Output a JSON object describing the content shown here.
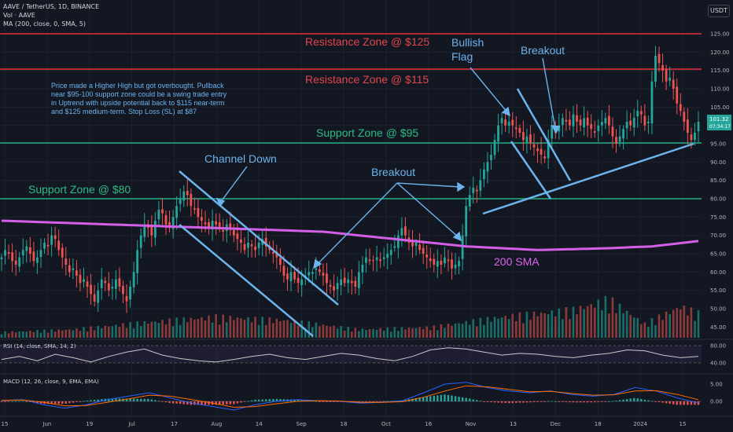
{
  "header": {
    "symbol_line": "AAVE / TetherUS, 1D, BINANCE",
    "volume_line": "Vol · AAVE",
    "ma_line": "MA (200, close, 0, SMA, 5)",
    "currency": "USDT"
  },
  "annotations": {
    "resistance_125": "Resistance Zone @ $125",
    "resistance_115": "Resistance Zone @ $115",
    "support_95": "Support Zone @ $95",
    "support_80": "Support Zone @ $80",
    "channel_down": "Channel Down",
    "breakout_mid": "Breakout",
    "breakout_top": "Breakout",
    "bullish_flag_1": "Bullish",
    "bullish_flag_2": "Flag",
    "sma_label": "200 SMA",
    "note": [
      "Price made a Higher High but got overbought. Pullback",
      "near $95-100 support zone could be a swing trade entry",
      "in Uptrend with upside potential back to $115 near-term",
      "and $125 medium-term. Stop Loss (SL) at $87"
    ]
  },
  "price_tag": {
    "value": "101.32",
    "time": "07:34:17"
  },
  "rsi_label": "RSI (14, close, SMA, 14, 2)",
  "macd_label": "MACD (12, 26, close, 9, EMA, EMA)",
  "colors": {
    "up": "#26a69a",
    "down": "#ef5350",
    "sma": "#e040fb",
    "resistance": "#f23645",
    "support": "#2ebd85",
    "trendline": "#64b5f6"
  },
  "chart_data": [
    {
      "type": "candlestick",
      "title": "AAVE / TetherUS, 1D, BINANCE",
      "ylim": [
        40,
        130
      ],
      "y_ticks": [
        45,
        50,
        55,
        60,
        65,
        70,
        75,
        80,
        85,
        90,
        95,
        100,
        105,
        110,
        115,
        120,
        125
      ],
      "x_tick_labels": [
        "15",
        "Jun",
        "19",
        "Jul",
        "17",
        "Aug",
        "14",
        "Sep",
        "18",
        "Oct",
        "16",
        "Nov",
        "13",
        "Dec",
        "18",
        "2024",
        "15"
      ],
      "horizontal_levels": [
        {
          "label": "Resistance Zone @ $125",
          "value": 125
        },
        {
          "label": "Resistance Zone @ $115",
          "value": 115
        },
        {
          "label": "Support Zone @ $95",
          "value": 95
        },
        {
          "label": "Support Zone @ $80",
          "value": 80
        }
      ],
      "close_series": [
        64,
        66,
        65,
        63,
        62,
        64,
        66,
        67,
        65,
        63,
        64,
        66,
        68,
        67,
        70,
        69,
        66,
        64,
        62,
        60,
        61,
        59,
        57,
        58,
        56,
        54,
        52,
        55,
        58,
        57,
        55,
        56,
        58,
        56,
        54,
        52,
        56,
        60,
        66,
        70,
        73,
        72,
        70,
        74,
        77,
        76,
        73,
        72,
        75,
        78,
        80,
        82,
        81,
        78,
        77,
        75,
        74,
        73,
        72,
        74,
        73,
        72,
        71,
        73,
        72,
        70,
        69,
        68,
        66,
        68,
        67,
        66,
        68,
        69,
        67,
        66,
        65,
        64,
        62,
        59,
        58,
        60,
        58,
        57,
        58,
        59,
        60,
        60,
        61,
        60,
        59,
        57,
        56,
        55,
        57,
        58,
        57,
        58,
        57,
        56,
        60,
        62,
        64,
        63,
        63,
        64,
        63,
        64,
        65,
        66,
        67,
        70,
        72,
        70,
        68,
        67,
        68,
        66,
        65,
        64,
        63,
        62,
        63,
        62,
        64,
        63,
        61,
        62,
        63,
        70,
        78,
        81,
        83,
        82,
        85,
        88,
        90,
        92,
        96,
        100,
        102,
        100,
        101,
        100,
        99,
        98,
        96,
        97,
        95,
        94,
        93,
        92,
        91,
        96,
        100,
        98,
        100,
        102,
        101,
        100,
        103,
        101,
        100,
        102,
        100,
        99,
        98,
        100,
        101,
        102,
        100,
        97,
        95,
        97,
        99,
        101,
        100,
        102,
        104,
        103,
        100,
        101,
        112,
        119,
        117,
        115,
        112,
        113,
        110,
        106,
        104,
        101,
        98,
        96,
        98,
        101
      ],
      "sma200": [
        [
          0,
          74
        ],
        [
          30,
          73
        ],
        [
          60,
          72
        ],
        [
          90,
          71
        ],
        [
          110,
          69
        ],
        [
          130,
          67
        ],
        [
          150,
          66
        ],
        [
          170,
          66.5
        ],
        [
          182,
          67
        ],
        [
          200,
          69
        ],
        [
          215,
          71
        ],
        [
          230,
          73.5
        ],
        [
          245,
          75.5
        ],
        [
          258,
          77.5
        ]
      ],
      "volume": [
        [
          0,
          8
        ],
        [
          20,
          12
        ],
        [
          40,
          22
        ],
        [
          60,
          30
        ],
        [
          80,
          25
        ],
        [
          100,
          12
        ],
        [
          120,
          15
        ],
        [
          140,
          30
        ],
        [
          160,
          40
        ],
        [
          170,
          55
        ],
        [
          180,
          20
        ],
        [
          190,
          45
        ],
        [
          200,
          25
        ],
        [
          210,
          35
        ],
        [
          220,
          20
        ],
        [
          240,
          30
        ],
        [
          250,
          50
        ],
        [
          258,
          15
        ]
      ]
    },
    {
      "type": "line",
      "title": "RSI (14, close, SMA, 14, 2)",
      "ylim": [
        30,
        90
      ],
      "y_ticks": [
        40,
        80
      ],
      "values": [
        48,
        55,
        45,
        60,
        52,
        42,
        55,
        65,
        72,
        58,
        50,
        45,
        42,
        48,
        55,
        60,
        52,
        48,
        55,
        62,
        58,
        50,
        45,
        55,
        70,
        75,
        72,
        65,
        58,
        62,
        60,
        55,
        52,
        58,
        62,
        70,
        68,
        58,
        52,
        55
      ]
    },
    {
      "type": "line",
      "title": "MACD (12, 26, close, 9, EMA, EMA)",
      "ylim": [
        -4,
        6
      ],
      "y_ticks": [
        0,
        5
      ],
      "series": [
        {
          "name": "MACD",
          "values": [
            0.2,
            0.5,
            -1.0,
            -2.0,
            -1.0,
            0.5,
            1.5,
            2.5,
            1.0,
            -0.5,
            -1.5,
            -2.5,
            -1.0,
            0.0,
            0.5,
            0.2,
            0.0,
            -0.5,
            -0.3,
            0.2,
            2.5,
            5.0,
            5.5,
            4.0,
            3.0,
            2.5,
            3.0,
            2.0,
            1.5,
            2.0,
            4.0,
            3.0,
            1.0,
            -0.5
          ]
        },
        {
          "name": "Signal",
          "values": [
            0.3,
            0.4,
            -0.3,
            -1.3,
            -1.2,
            -0.3,
            0.7,
            1.8,
            1.5,
            0.5,
            -0.5,
            -1.7,
            -1.5,
            -0.7,
            0.0,
            0.2,
            0.1,
            -0.3,
            -0.3,
            -0.1,
            1.2,
            3.0,
            4.5,
            4.2,
            3.5,
            2.8,
            2.9,
            2.3,
            1.8,
            1.9,
            3.0,
            3.1,
            2.0,
            0.5
          ]
        }
      ]
    }
  ]
}
